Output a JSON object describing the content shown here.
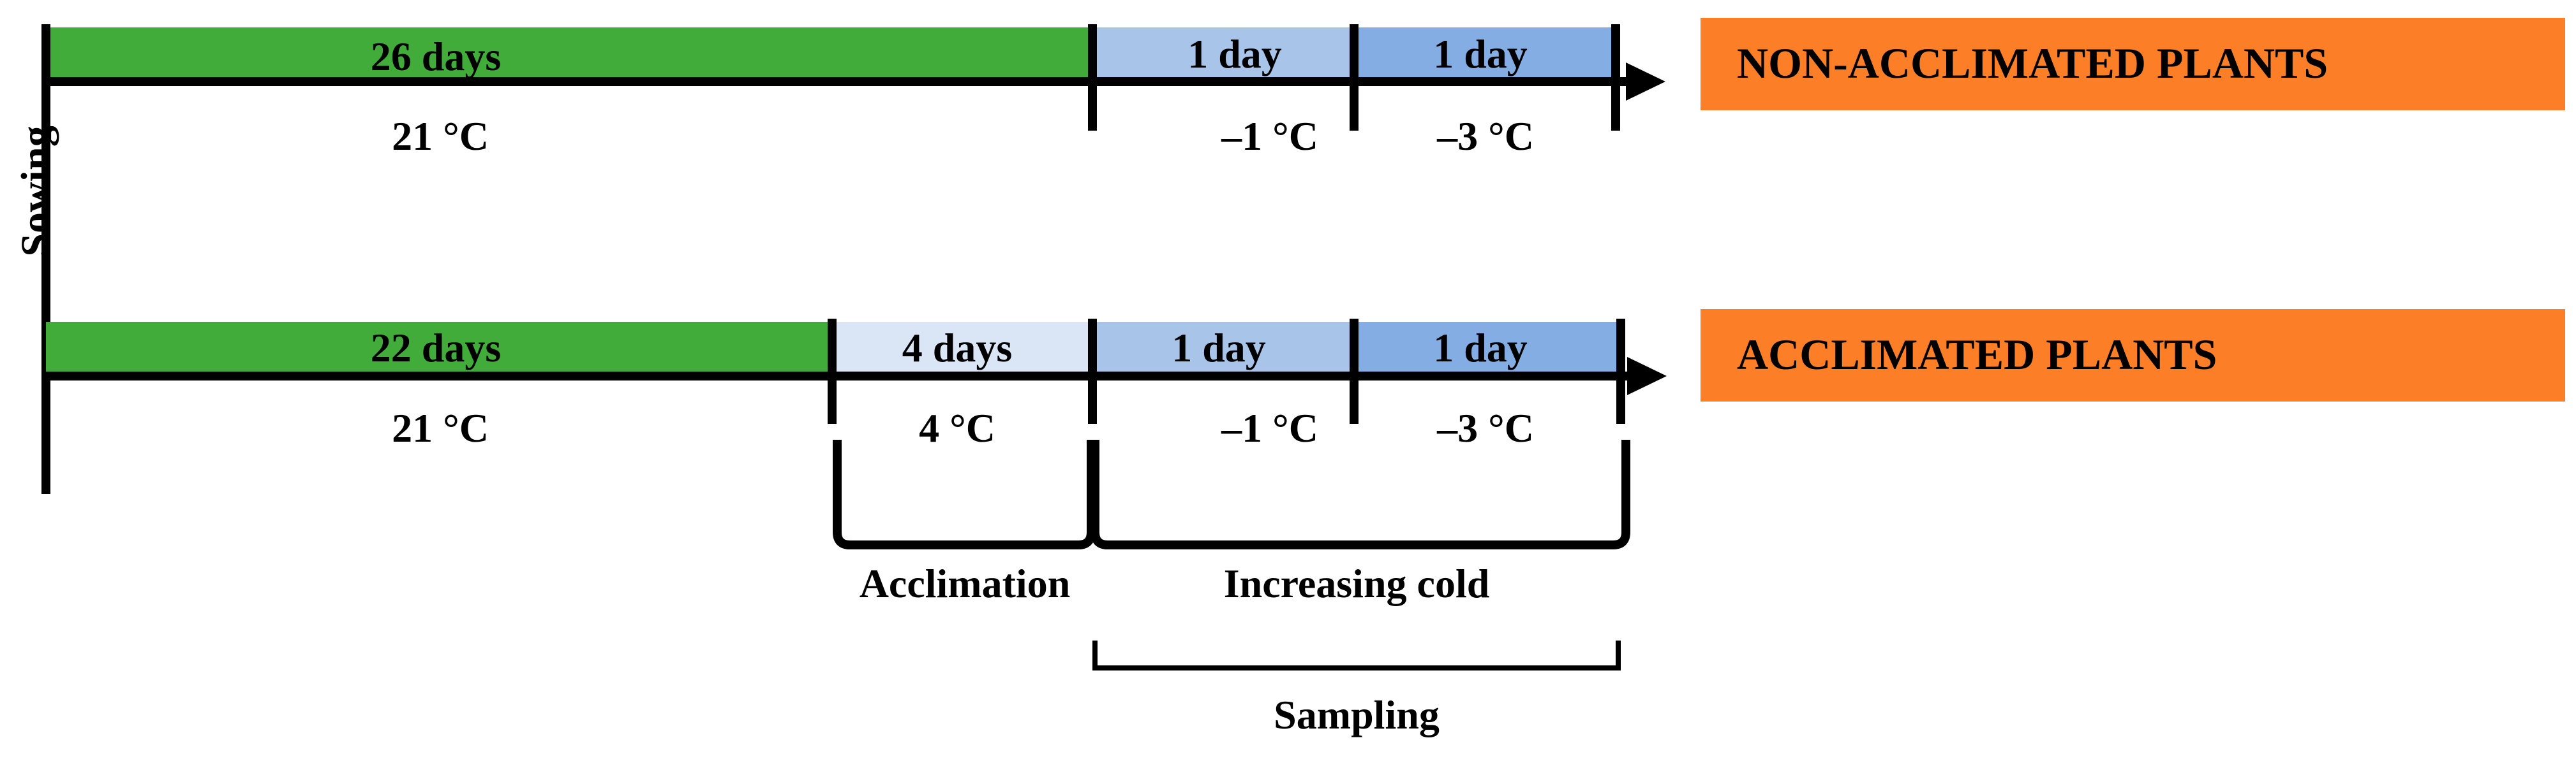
{
  "colors": {
    "growth": "#41ac3a",
    "acclimation": "#dae6f5",
    "cold_1": "#a9c4e9",
    "cold_2": "#84aee3",
    "label_box": "#fc7f27",
    "line": "#000000"
  },
  "sowing_label": "Sowing",
  "rows": [
    {
      "label": "NON-ACCLIMATED PLANTS",
      "segments": [
        {
          "duration": "26 days",
          "temperature": "21 °C"
        },
        {
          "duration": "1 day",
          "temperature": "–1 °C"
        },
        {
          "duration": "1 day",
          "temperature": "–3 °C"
        }
      ]
    },
    {
      "label": "ACCLIMATED PLANTS",
      "segments": [
        {
          "duration": "22 days",
          "temperature": "21 °C"
        },
        {
          "duration": "4 days",
          "temperature": "4 °C"
        },
        {
          "duration": "1 day",
          "temperature": "–1 °C"
        },
        {
          "duration": "1 day",
          "temperature": "–3 °C"
        }
      ]
    }
  ],
  "phases": {
    "acclimation": "Acclimation",
    "increasing_cold": "Increasing cold",
    "sampling": "Sampling"
  }
}
